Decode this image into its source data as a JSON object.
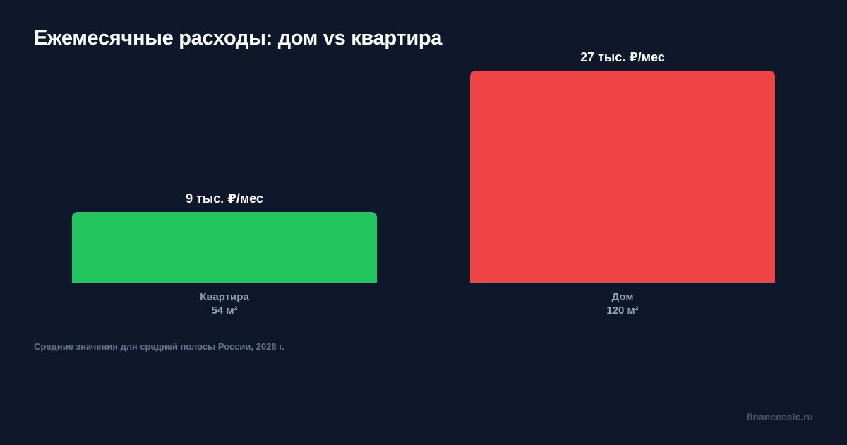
{
  "title": "Ежемесячные расходы: дом vs квартира",
  "footnote": "Средние значения для средней полосы России, 2026 г.",
  "source": "financecalc.ru",
  "chart_data": {
    "type": "bar",
    "title": "Ежемесячные расходы: дом vs квартира",
    "categories": [
      "Квартира",
      "Дом"
    ],
    "category_sublabels": [
      "54 м²",
      "120 м²"
    ],
    "values": [
      9,
      27
    ],
    "value_labels": [
      "9 тыс. ₽/мес",
      "27 тыс. ₽/мес"
    ],
    "colors": [
      "#22c55e",
      "#ef4444"
    ],
    "xlabel": "",
    "ylabel": "",
    "ylim": [
      0,
      27
    ],
    "grid": false,
    "legend": "none"
  }
}
